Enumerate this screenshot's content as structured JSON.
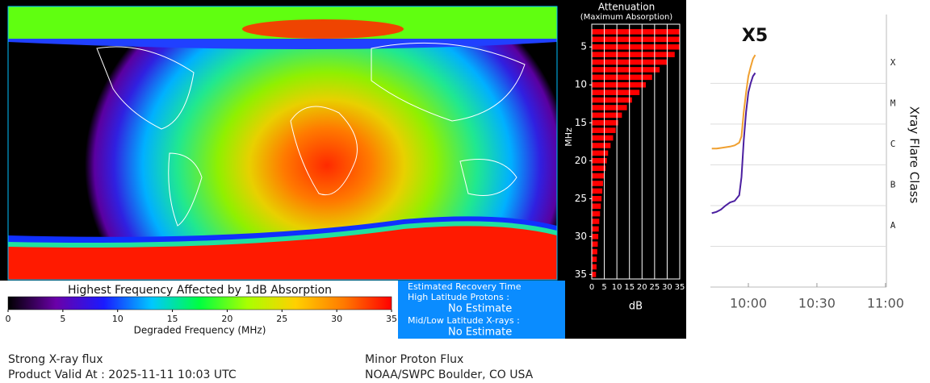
{
  "chart_data": [
    {
      "type": "colorbar",
      "title": "Highest Frequency Affected by 1dB Absorption",
      "xlabel": "Degraded Frequency (MHz)",
      "xlim": [
        0,
        35
      ],
      "xticks": [
        0,
        5,
        10,
        15,
        20,
        25,
        30,
        35
      ],
      "colors": [
        "#000000",
        "#6a00a8",
        "#1a1aff",
        "#00c8ff",
        "#00ff40",
        "#aaff00",
        "#ffd000",
        "#ff7a00",
        "#ff0000"
      ]
    },
    {
      "type": "bar",
      "orientation": "horizontal",
      "title": "Attenuation",
      "subtitle": "(Maximum Absorption)",
      "ylabel": "MHz",
      "xlabel": "dB",
      "color": "#ff0000",
      "y": [
        3,
        4,
        5,
        6,
        7,
        8,
        9,
        10,
        11,
        12,
        13,
        14,
        15,
        16,
        17,
        18,
        19,
        20,
        21,
        22,
        23,
        24,
        25,
        26,
        27,
        28,
        29,
        30,
        31,
        32,
        33,
        34,
        35
      ],
      "values": [
        35,
        35,
        35,
        33,
        30,
        27,
        24,
        21.5,
        19,
        16,
        14,
        12,
        10.5,
        9.5,
        8.5,
        7.5,
        6.5,
        6,
        5.5,
        5,
        4.5,
        4.2,
        3.9,
        3.6,
        3.3,
        3,
        2.8,
        2.6,
        2.4,
        2.2,
        2,
        1.9,
        1.7
      ],
      "xlim": [
        0,
        35
      ],
      "xticks": [
        0,
        5,
        10,
        15,
        20,
        25,
        30,
        35
      ],
      "ylim": [
        2,
        35.6
      ],
      "yticks": [
        5,
        10,
        15,
        20,
        25,
        30,
        35
      ],
      "y_inverted": true,
      "grid": true
    },
    {
      "type": "line",
      "annotation": "X5",
      "ylabel": "Xray Flare Class",
      "log_y": true,
      "grid": true,
      "x": [
        584,
        586,
        588,
        590,
        592,
        594,
        596,
        597,
        598,
        599,
        600,
        601,
        602,
        603
      ],
      "xlim": [
        583.4,
        660.4
      ],
      "xticks": [
        {
          "value": 600,
          "label": "10:00"
        },
        {
          "value": 630,
          "label": "10:30"
        },
        {
          "value": 660,
          "label": "11:00"
        }
      ],
      "ylim": [
        1e-09,
        0.0049
      ],
      "yticks": [
        {
          "value": 1e-08,
          "label": "A"
        },
        {
          "value": 1e-07,
          "label": "B"
        },
        {
          "value": 1e-06,
          "label": "C"
        },
        {
          "value": 1e-05,
          "label": "M"
        },
        {
          "value": 0.0001,
          "label": "X"
        }
      ],
      "series": [
        {
          "color": "#f0a030",
          "values": [
            2.5e-06,
            2.5e-06,
            2.6e-06,
            2.7e-06,
            2.8e-06,
            3e-06,
            3.5e-06,
            5e-06,
            2e-05,
            6e-05,
            0.00015,
            0.00025,
            0.0004,
            0.0005
          ]
        },
        {
          "color": "#4b1fa0",
          "values": [
            6.5e-08,
            7e-08,
            8e-08,
            1e-07,
            1.2e-07,
            1.3e-07,
            1.8e-07,
            5e-07,
            4e-06,
            2e-05,
            6e-05,
            0.0001,
            0.00015,
            0.00018
          ]
        }
      ]
    }
  ],
  "recovery": {
    "title": "Estimated Recovery Time",
    "high_label": "High Latitude Protons :",
    "high_value": "No Estimate",
    "low_label": "Mid/Low Latitude X-rays :",
    "low_value": "No Estimate"
  },
  "footer": {
    "xray": "Strong X-ray flux",
    "valid": "Product Valid At : 2025-11-11 10:03 UTC",
    "proton": "Minor Proton Flux",
    "source": "NOAA/SWPC Boulder, CO USA"
  }
}
